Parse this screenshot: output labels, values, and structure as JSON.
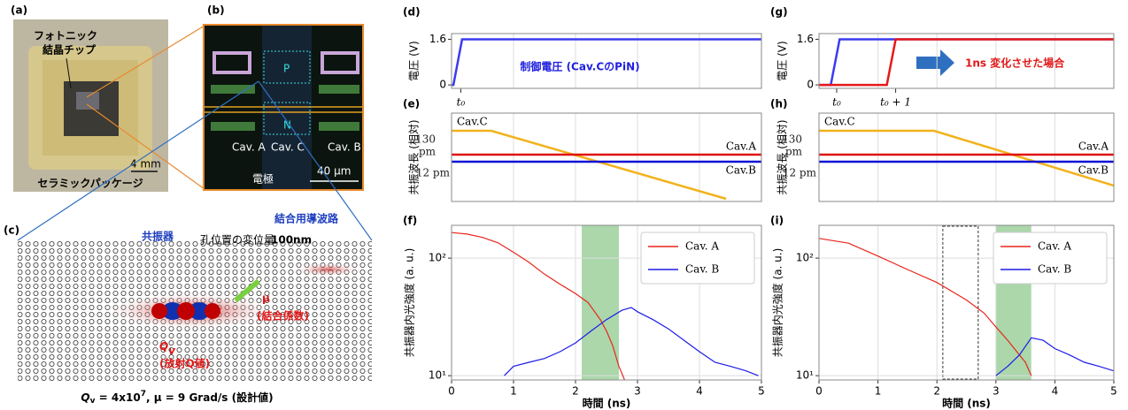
{
  "figure": {
    "a": {
      "label": "(a)",
      "chip": [
        "フォトニック",
        "結晶チップ"
      ],
      "scale": "4 mm",
      "package": "セラミックパッケージ"
    },
    "b": {
      "label": "(b)",
      "p": "P",
      "n": "N",
      "cavities": [
        "Cav. A",
        "Cav. C",
        "Cav. B"
      ],
      "electrode": "電極",
      "scale": "40 µm"
    },
    "c": {
      "label": "(c)",
      "resonator": "共振器",
      "shift": [
        "孔位置の変位量",
        "100nm"
      ],
      "waveguide": "結合用導波路",
      "mu": "μ",
      "mu_note": "(結合係数)",
      "q": "Q",
      "q_sub": "v",
      "q_note": "(放射Q値)",
      "caption": [
        "Q",
        "v",
        " = 4x10",
        "7",
        ", μ = 9 Grad/s (設計値)"
      ]
    }
  },
  "chart_data": [
    {
      "type": "line",
      "label": "(d)",
      "ylabel": "電圧 (V)",
      "xlim": [
        0,
        5
      ],
      "xticks": [
        0,
        1,
        2,
        3,
        4,
        5
      ],
      "xtick_labels": false,
      "ylim": [
        -0.12,
        1.8
      ],
      "yticks": [
        0,
        1.6
      ],
      "grid": true,
      "markers": [
        {
          "value": 0.15,
          "label": "t₀"
        }
      ],
      "annotations": [
        {
          "text": "制御電圧 (Cav.CのPiN)",
          "color": "#1f1fe0"
        }
      ],
      "series": [
        {
          "color": "#3b3bf0",
          "x": [
            0,
            0.03,
            0.17,
            5
          ],
          "values": [
            0,
            0,
            1.6,
            1.6
          ]
        }
      ]
    },
    {
      "type": "line",
      "label": "(e)",
      "ylabel": "共振波長 (相対)",
      "xlim": [
        0,
        5
      ],
      "xticks": [
        0,
        1,
        2,
        3,
        4,
        5
      ],
      "xtick_labels": false,
      "ylim": [
        0,
        100
      ],
      "yticks": [],
      "grid": true,
      "series_labels": true,
      "annotations": [
        {
          "text": "130",
          "color": "#222"
        },
        {
          "text": "pm",
          "color": "#222"
        },
        {
          "text": "12 pm",
          "color": "#222"
        }
      ],
      "series": [
        {
          "name": "Cav.C",
          "color": "#f2b21c",
          "x": [
            0,
            0.64,
            4.43
          ],
          "values": [
            80,
            80,
            3
          ]
        },
        {
          "name": "Cav.A",
          "color": "#e01010",
          "x": [
            0,
            5
          ],
          "values": [
            53,
            53
          ]
        },
        {
          "name": "Cav.B",
          "color": "#1010d8",
          "x": [
            0,
            5
          ],
          "values": [
            45,
            45
          ]
        }
      ]
    },
    {
      "type": "line",
      "label": "(f)",
      "ylabel": "共振器内光強度 (a. u.)",
      "xlabel": "時間 (ns)",
      "xlim": [
        0,
        5
      ],
      "xticks": [
        0,
        1,
        2,
        3,
        4,
        5
      ],
      "xtick_labels": true,
      "ylim": [
        9.2,
        190
      ],
      "log_y": true,
      "yticks": [
        {
          "value": 10,
          "label": "10¹"
        },
        {
          "value": 100,
          "label": "10²"
        }
      ],
      "grid": true,
      "band": [
        2.1,
        2.7
      ],
      "band_color": "#8fc98f",
      "legend": "upper right",
      "series": [
        {
          "name": "Cav. A",
          "color": "#e8261c",
          "x": [
            0,
            0.25,
            0.5,
            0.75,
            1.0,
            1.25,
            1.5,
            1.75,
            2.0,
            2.2,
            2.4,
            2.5,
            2.6,
            2.7,
            2.8
          ],
          "values": [
            165,
            160,
            150,
            135,
            112,
            92,
            73,
            60,
            50,
            42,
            30,
            24,
            18,
            12,
            9
          ]
        },
        {
          "name": "Cav. B",
          "color": "#1c1ce8",
          "x": [
            0.85,
            1.0,
            1.25,
            1.5,
            1.75,
            2.0,
            2.25,
            2.5,
            2.75,
            2.9,
            3.0,
            3.25,
            3.5,
            3.75,
            4.0,
            4.25,
            4.5,
            4.75,
            4.95
          ],
          "values": [
            10,
            12,
            13,
            14,
            16,
            19,
            24,
            30,
            36,
            38,
            35,
            30,
            25,
            20,
            16,
            13,
            12,
            11,
            10
          ]
        }
      ]
    },
    {
      "type": "line",
      "label": "(g)",
      "ylabel": "電圧 (V)",
      "xlim": [
        0,
        5
      ],
      "xticks": [
        0,
        1,
        2,
        3,
        4,
        5
      ],
      "xtick_labels": false,
      "ylim": [
        -0.12,
        1.8
      ],
      "yticks": [
        0,
        1.6
      ],
      "grid": true,
      "markers": [
        {
          "value": 0.3,
          "label": "t₀"
        },
        {
          "value": 1.3,
          "label": "t₀ + 1"
        }
      ],
      "annotations": [
        {
          "text": "1ns 変化させた場合",
          "color": "#e01818"
        }
      ],
      "series": [
        {
          "color": "#3b3bf0",
          "x": [
            0,
            0.2,
            0.35,
            5
          ],
          "values": [
            0,
            0,
            1.6,
            1.6
          ]
        },
        {
          "color": "#e81818",
          "x": [
            0,
            1.15,
            1.3,
            5
          ],
          "values": [
            0,
            0,
            1.6,
            1.6
          ]
        }
      ]
    },
    {
      "type": "line",
      "label": "(h)",
      "ylabel": "共振波長 (相対)",
      "xlim": [
        0,
        5
      ],
      "xticks": [
        0,
        1,
        2,
        3,
        4,
        5
      ],
      "xtick_labels": false,
      "ylim": [
        0,
        100
      ],
      "yticks": [],
      "grid": true,
      "series_labels": true,
      "annotations": [
        {
          "text": "130",
          "color": "#222"
        },
        {
          "text": "pm",
          "color": "#222"
        },
        {
          "text": "12 pm",
          "color": "#222"
        }
      ],
      "series": [
        {
          "name": "Cav.C",
          "color": "#f2b21c",
          "x": [
            0,
            1.95,
            5
          ],
          "values": [
            80,
            80,
            18
          ]
        },
        {
          "name": "Cav.A",
          "color": "#e01010",
          "x": [
            0,
            5
          ],
          "values": [
            53,
            53
          ]
        },
        {
          "name": "Cav.B",
          "color": "#1010d8",
          "x": [
            0,
            5
          ],
          "values": [
            45,
            45
          ]
        }
      ]
    },
    {
      "type": "line",
      "label": "(i)",
      "ylabel": "共振器内光強度 (a. u.)",
      "xlabel": "時間 (ns)",
      "xlim": [
        0,
        5
      ],
      "xticks": [
        0,
        1,
        2,
        3,
        4,
        5
      ],
      "xtick_labels": true,
      "ylim": [
        9.2,
        190
      ],
      "log_y": true,
      "yticks": [
        {
          "value": 10,
          "label": "10¹"
        },
        {
          "value": 100,
          "label": "10²"
        }
      ],
      "grid": true,
      "band": [
        3.0,
        3.6
      ],
      "band_color": "#8fc98f",
      "dashed_box": [
        2.1,
        2.7
      ],
      "legend": "upper right",
      "series": [
        {
          "name": "Cav. A",
          "color": "#e8261c",
          "x": [
            0,
            0.5,
            1.0,
            1.5,
            2.0,
            2.5,
            2.8,
            3.0,
            3.2,
            3.4,
            3.5,
            3.6
          ],
          "values": [
            147,
            134,
            104,
            80,
            62,
            44,
            34,
            26,
            20,
            15,
            13,
            10
          ]
        },
        {
          "name": "Cav. B",
          "color": "#1c1ce8",
          "x": [
            3.0,
            3.2,
            3.4,
            3.6,
            3.8,
            4.0,
            4.25,
            4.5,
            4.75,
            5.0
          ],
          "values": [
            10,
            12,
            15,
            21,
            20,
            17,
            15,
            13,
            12,
            11
          ]
        }
      ]
    }
  ]
}
